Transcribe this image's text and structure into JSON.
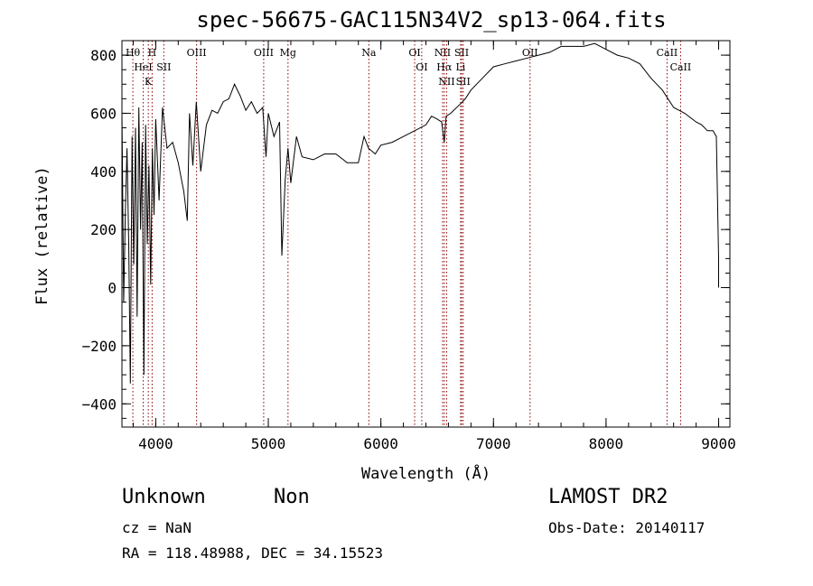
{
  "chart_data": {
    "type": "line",
    "title": "spec-56675-GAC115N34V2_sp13-064.fits",
    "xlabel": "Wavelength (Å)",
    "ylabel": "Flux (relative)",
    "xlim": [
      3700,
      9100
    ],
    "ylim": [
      -480,
      850
    ],
    "xticks": [
      4000,
      5000,
      6000,
      7000,
      8000,
      9000
    ],
    "yticks": [
      -400,
      -200,
      0,
      200,
      400,
      600,
      800
    ],
    "grid": false,
    "legend": "none",
    "series": [
      {
        "values_x": [
          3700,
          3715,
          3730,
          3745,
          3760,
          3775,
          3790,
          3805,
          3820,
          3835,
          3850,
          3865,
          3880,
          3895,
          3910,
          3925,
          3940,
          3955,
          3970,
          3985,
          4000,
          4030,
          4060,
          4100,
          4150,
          4200,
          4250,
          4280,
          4300,
          4330,
          4360,
          4400,
          4450,
          4500,
          4550,
          4600,
          4650,
          4700,
          4750,
          4800,
          4850,
          4900,
          4950,
          4980,
          5000,
          5050,
          5100,
          5120,
          5150,
          5175,
          5200,
          5250,
          5300,
          5400,
          5500,
          5600,
          5700,
          5800,
          5850,
          5890,
          5950,
          6000,
          6100,
          6200,
          6300,
          6400,
          6450,
          6500,
          6540,
          6563,
          6580,
          6620,
          6700,
          6750,
          6800,
          6900,
          7000,
          7100,
          7200,
          7300,
          7400,
          7500,
          7600,
          7700,
          7800,
          7900,
          8000,
          8100,
          8200,
          8300,
          8400,
          8500,
          8600,
          8700,
          8800,
          8850,
          8900,
          8950,
          8980,
          9000,
          9000
        ],
        "values_y": [
          600,
          -50,
          250,
          480,
          150,
          -330,
          520,
          80,
          550,
          -100,
          620,
          200,
          500,
          -300,
          560,
          150,
          420,
          10,
          480,
          250,
          580,
          300,
          620,
          480,
          500,
          430,
          330,
          230,
          600,
          420,
          640,
          400,
          560,
          610,
          600,
          640,
          650,
          700,
          660,
          610,
          640,
          600,
          620,
          450,
          600,
          520,
          570,
          110,
          370,
          480,
          360,
          520,
          450,
          440,
          460,
          460,
          430,
          430,
          520,
          480,
          460,
          490,
          500,
          520,
          540,
          560,
          590,
          580,
          570,
          500,
          590,
          600,
          630,
          650,
          680,
          720,
          760,
          770,
          780,
          790,
          800,
          810,
          830,
          830,
          830,
          840,
          820,
          800,
          790,
          770,
          720,
          680,
          620,
          600,
          570,
          560,
          540,
          540,
          520,
          100,
          0
        ]
      }
    ],
    "lines": [
      {
        "label": "Hθ",
        "x": 3797
      },
      {
        "label": "HeI",
        "x": 3889
      },
      {
        "label": "K",
        "x": 3934
      },
      {
        "label": "H",
        "x": 3968
      },
      {
        "label": "SII",
        "x": 4072
      },
      {
        "label": "OIII",
        "x": 4363
      },
      {
        "label": "OIII",
        "x": 4959
      },
      {
        "label": "Mg",
        "x": 5175
      },
      {
        "label": "Na",
        "x": 5893
      },
      {
        "label": "OI",
        "x": 6300
      },
      {
        "label": "OI",
        "x": 6363
      },
      {
        "label": "NII",
        "x": 6548
      },
      {
        "label": "Hα",
        "x": 6563
      },
      {
        "label": "NII",
        "x": 6584
      },
      {
        "label": "SII",
        "x": 6717
      },
      {
        "label": "Li",
        "x": 6708
      },
      {
        "label": "SII",
        "x": 6731
      },
      {
        "label": "OII",
        "x": 7325
      },
      {
        "label": "CaII",
        "x": 8542
      },
      {
        "label": "CaII",
        "x": 8662
      }
    ]
  },
  "info": {
    "class": "Unknown",
    "subclass": "Non",
    "cz": "cz = NaN",
    "radec": "RA = 118.48988, DEC =  34.15523",
    "survey": "LAMOST DR2",
    "obsdate": "Obs-Date: 20140117"
  },
  "colors": {
    "line": "#000000",
    "marker": "#8b0000"
  }
}
